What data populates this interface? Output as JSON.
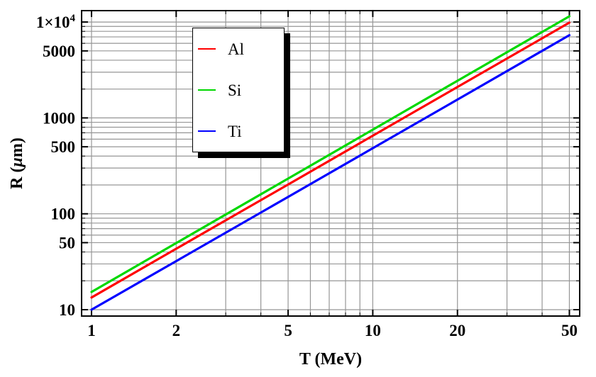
{
  "chart_data": {
    "type": "line",
    "title": "",
    "xlabel": "T (MeV)",
    "ylabel": "R (μm)",
    "x_scale": "log",
    "y_scale": "log",
    "xlim": [
      0.922,
      54.4
    ],
    "ylim": [
      8.58,
      13150
    ],
    "grid": {
      "show": true,
      "minor": true,
      "color": "#969696"
    },
    "frame_color": "#000000",
    "background": "#ffffff",
    "x": [
      1,
      2,
      5,
      10,
      20,
      50
    ],
    "series": [
      {
        "name": "Al",
        "color": "#ff0000",
        "values": [
          13.4,
          43.2,
          202,
          652,
          2100,
          9860
        ]
      },
      {
        "name": "Si",
        "color": "#00d800",
        "values": [
          15.3,
          49.5,
          233,
          754,
          2440,
          11480
        ]
      },
      {
        "name": "Ti",
        "color": "#0000ff",
        "values": [
          10.0,
          32.1,
          150,
          483,
          1553,
          7290
        ]
      }
    ],
    "x_ticks": {
      "major": [
        1,
        2,
        5,
        10,
        20,
        50
      ],
      "labels": [
        "1",
        "2",
        "5",
        "10",
        "20",
        "50"
      ],
      "minor": [
        3,
        4,
        6,
        7,
        8,
        9,
        30,
        40
      ]
    },
    "y_ticks": {
      "major": [
        10,
        50,
        100,
        500,
        1000,
        5000,
        10000
      ],
      "labels": [
        "10",
        "50",
        "100",
        "500",
        "1000",
        "5000",
        "1×10^4"
      ],
      "minor": [
        20,
        30,
        40,
        60,
        70,
        80,
        90,
        200,
        300,
        400,
        600,
        700,
        800,
        900,
        2000,
        3000,
        4000,
        6000,
        7000,
        8000,
        9000
      ]
    },
    "legend": {
      "position": "upper-left-inset",
      "entries": [
        {
          "label": "Al",
          "color": "#ff0000"
        },
        {
          "label": "Si",
          "color": "#00d800"
        },
        {
          "label": "Ti",
          "color": "#0000ff"
        }
      ]
    }
  }
}
